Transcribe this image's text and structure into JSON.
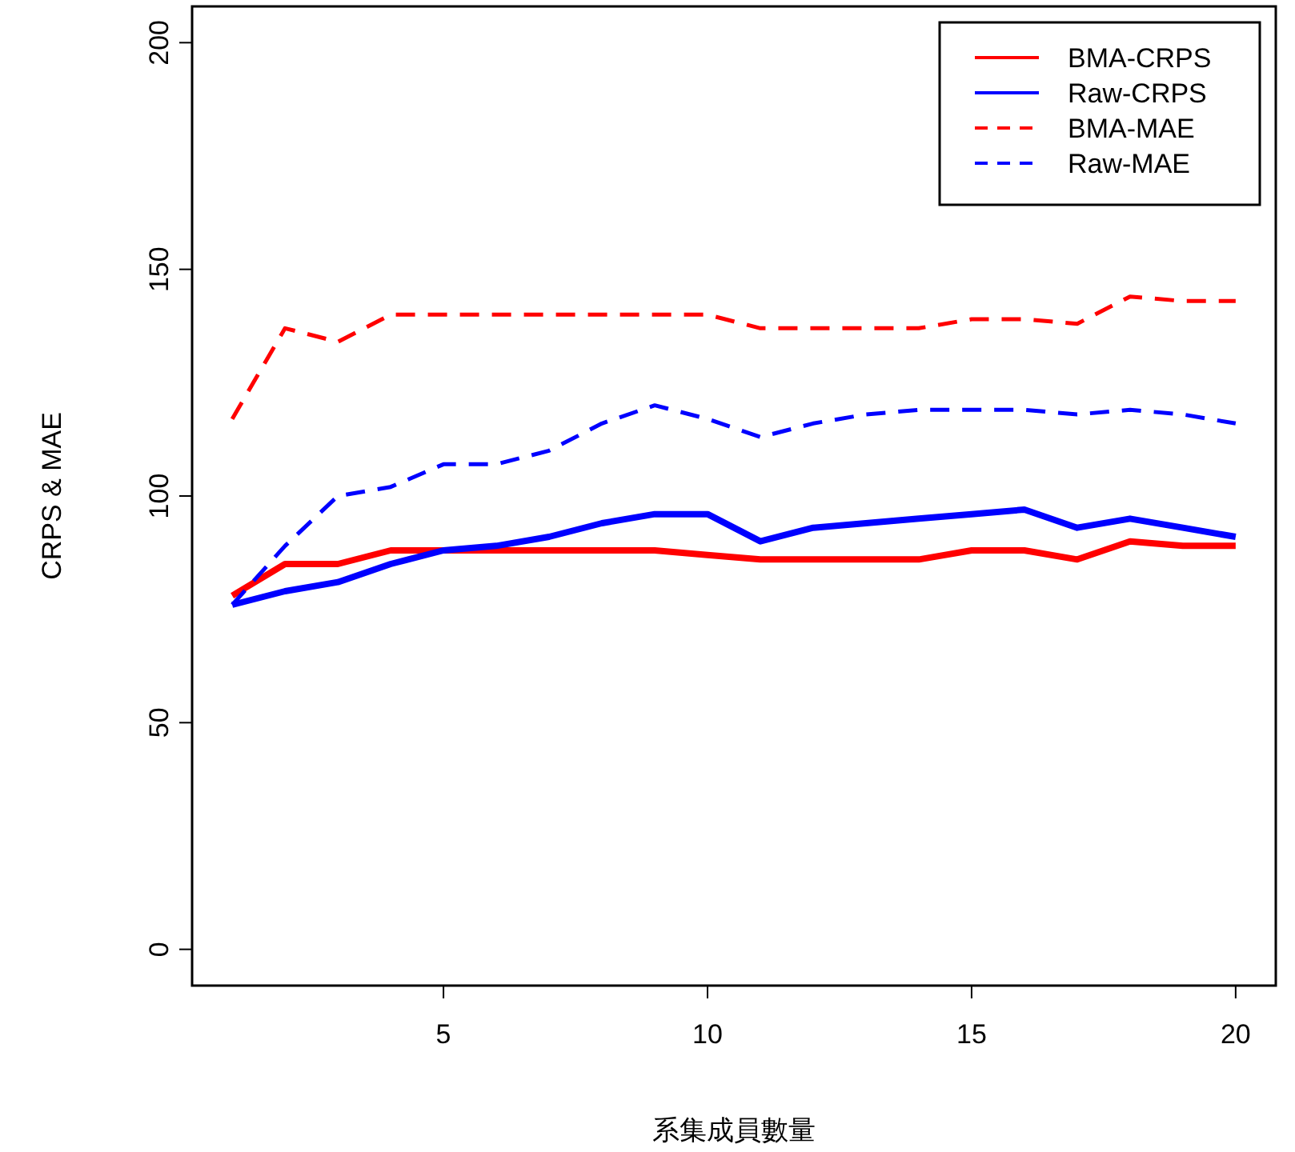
{
  "chart_data": {
    "type": "line",
    "xlabel": "系集成員數量",
    "ylabel": "CRPS & MAE",
    "x": [
      1,
      2,
      3,
      4,
      5,
      6,
      7,
      8,
      9,
      10,
      11,
      12,
      13,
      14,
      15,
      16,
      17,
      18,
      19,
      20
    ],
    "xlim": [
      0.24,
      20.76
    ],
    "ylim": [
      -8,
      208
    ],
    "xticks": [
      5,
      10,
      15,
      20
    ],
    "yticks": [
      0,
      50,
      100,
      150,
      200
    ],
    "grid": false,
    "legend": "top right",
    "series": [
      {
        "name": "BMA-CRPS",
        "color": "#ff0000",
        "line_style": "solid",
        "values": [
          78,
          85,
          85,
          88,
          88,
          88,
          88,
          88,
          88,
          87,
          86,
          86,
          86,
          86,
          88,
          88,
          86,
          90,
          89,
          89
        ]
      },
      {
        "name": "Raw-CRPS",
        "color": "#0000ff",
        "line_style": "solid",
        "values": [
          76,
          79,
          81,
          85,
          88,
          89,
          91,
          94,
          96,
          96,
          90,
          93,
          94,
          95,
          96,
          97,
          93,
          95,
          93,
          91
        ]
      },
      {
        "name": "BMA-MAE",
        "color": "#ff0000",
        "line_style": "dashed",
        "values": [
          117,
          137,
          134,
          140,
          140,
          140,
          140,
          140,
          140,
          140,
          137,
          137,
          137,
          137,
          139,
          139,
          138,
          144,
          143,
          143
        ]
      },
      {
        "name": "Raw-MAE",
        "color": "#0000ff",
        "line_style": "dashed",
        "values": [
          76,
          89,
          100,
          102,
          107,
          107,
          110,
          116,
          120,
          117,
          113,
          116,
          118,
          119,
          119,
          119,
          118,
          119,
          118,
          116
        ]
      }
    ]
  }
}
